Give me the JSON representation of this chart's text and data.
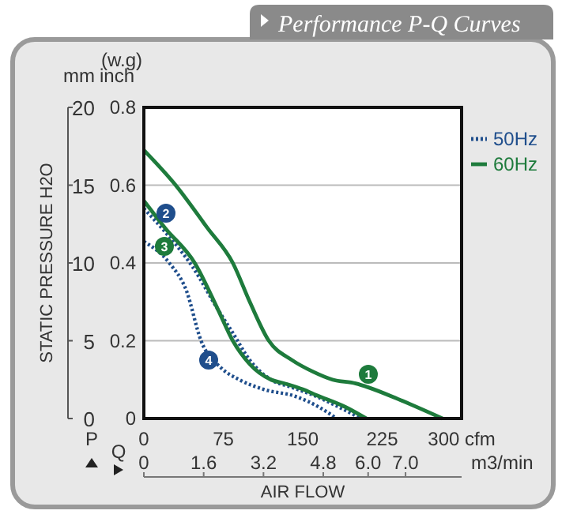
{
  "chart_data": {
    "type": "line",
    "title": "Performance P-Q Curves",
    "xlabel": "AIR FLOW",
    "ylabel": "STATIC PRESSURE H2O",
    "xlim": [
      0,
      300
    ],
    "xticks": [
      0,
      75,
      150,
      225,
      {
        "value": 300,
        "label": "300 cfm"
      }
    ],
    "x2lim": [
      0,
      8.5
    ],
    "x2ticks": [
      0,
      1.6,
      3.2,
      4.8,
      {
        "value": 6,
        "label": "6.0"
      },
      {
        "value": 7,
        "label": "7.0"
      }
    ],
    "x2label": "m3/min",
    "y2lim": [
      0,
      0.8
    ],
    "y2ticks": [
      0,
      0.2,
      0.4,
      0.6,
      0.8
    ],
    "ylim": [
      0,
      20
    ],
    "yticks": [
      0,
      5,
      10,
      15,
      20
    ],
    "grid": "y",
    "legend": "right",
    "annotations": [
      "1",
      "2",
      "3",
      "4",
      "(w.g)",
      "inch",
      "P",
      "Q",
      "mm"
    ],
    "series": [
      {
        "name": "60Hz",
        "axis": "y2",
        "color": "#1e7b3c",
        "line_style": "solid",
        "x": [
          0,
          30,
          60,
          84,
          100,
          118,
          140,
          160,
          178,
          200,
          212,
          240,
          282
        ],
        "values": [
          0.69,
          0.6,
          0.49,
          0.4,
          0.3,
          0.2,
          0.15,
          0.12,
          0.1,
          0.09,
          0.08,
          0.05,
          0
        ]
      },
      {
        "name": "50Hz",
        "axis": "y2",
        "color": "#1f4e8c",
        "line_style": "dotted",
        "x": [
          0,
          20,
          46,
          70,
          84,
          100,
          120,
          140,
          160,
          180,
          205
        ],
        "values": [
          0.54,
          0.48,
          0.39,
          0.28,
          0.22,
          0.15,
          0.1,
          0.08,
          0.06,
          0.035,
          0
        ]
      },
      {
        "axis": "y2",
        "color": "#1e7b3c",
        "line_style": "solid",
        "x": [
          0,
          20,
          48,
          70,
          84,
          100,
          120,
          133,
          150,
          163,
          190,
          210
        ],
        "values": [
          0.56,
          0.49,
          0.4,
          0.28,
          0.2,
          0.14,
          0.1,
          0.09,
          0.075,
          0.06,
          0.03,
          0
        ]
      },
      {
        "axis": "y2",
        "color": "#1f4e8c",
        "line_style": "dotted",
        "x": [
          0,
          24,
          40,
          54,
          73,
          90,
          113,
          143,
          165,
          182
        ],
        "values": [
          0.455,
          0.4,
          0.33,
          0.2,
          0.13,
          0.1,
          0.075,
          0.057,
          0.03,
          0
        ]
      }
    ]
  }
}
